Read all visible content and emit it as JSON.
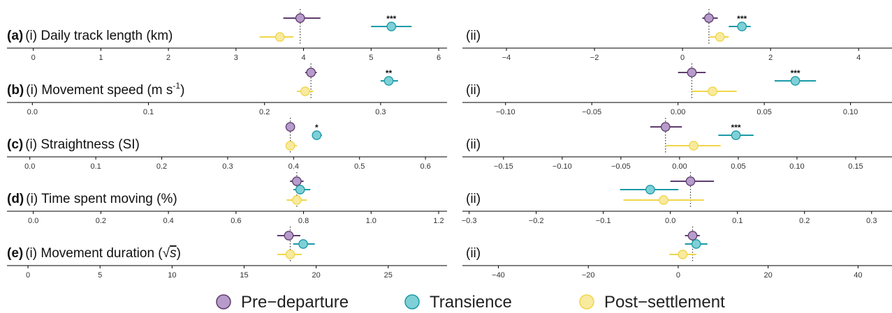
{
  "colors": {
    "pre": "#5e3c6e",
    "pre_fill": "#b79ccb",
    "trans": "#1a9aa8",
    "trans_fill": "#7fd0d6",
    "post": "#f0d64a",
    "post_fill": "#f8ea9e",
    "axis": "#000000",
    "tick_label": "#333333",
    "dotted": "#333333"
  },
  "legend": {
    "items": [
      {
        "key": "pre",
        "label": "Pre−departure"
      },
      {
        "key": "trans",
        "label": "Transience"
      },
      {
        "key": "post",
        "label": "Post−settlement"
      }
    ]
  },
  "chart_data": [
    {
      "type": "dot-interval",
      "panel_letter": "(a)",
      "title_text": "(i) Daily track length (km)",
      "sup": "",
      "has_sqrt": false,
      "left": {
        "xlim": [
          -0.1,
          6
        ],
        "ticks": [
          0,
          1,
          2,
          3,
          4,
          5,
          6
        ],
        "tick_labels": [
          "0",
          "1",
          "2",
          "3",
          "4",
          "5",
          "6"
        ],
        "ref": 3.95,
        "points": [
          {
            "key": "pre",
            "x": 3.95,
            "lo": 3.7,
            "hi": 4.25,
            "sig": ""
          },
          {
            "key": "trans",
            "x": 5.3,
            "lo": 5.0,
            "hi": 5.6,
            "sig": "***"
          },
          {
            "key": "post",
            "x": 3.65,
            "lo": 3.35,
            "hi": 3.85,
            "sig": ""
          }
        ]
      },
      "right": {
        "label": "(ii)",
        "xlim": [
          -5.0,
          4.6
        ],
        "ticks": [
          -4,
          -2,
          0,
          2,
          4
        ],
        "tick_labels": [
          "−4",
          "−2",
          "0",
          "2",
          "4"
        ],
        "ref": 0.6,
        "points": [
          {
            "key": "pre",
            "x": 0.6,
            "lo": 0.45,
            "hi": 0.8,
            "sig": ""
          },
          {
            "key": "trans",
            "x": 1.35,
            "lo": 1.05,
            "hi": 1.55,
            "sig": "***"
          },
          {
            "key": "post",
            "x": 0.85,
            "lo": 0.6,
            "hi": 1.05,
            "sig": ""
          }
        ]
      }
    },
    {
      "type": "dot-interval",
      "panel_letter": "(b)",
      "title_text": "(i) Movement speed (m s",
      "sup": "-1",
      "title_suffix": ")",
      "has_sqrt": false,
      "left": {
        "xlim": [
          -0.005,
          0.35
        ],
        "ticks": [
          0,
          0.1,
          0.2,
          0.3
        ],
        "tick_labels": [
          "0.0",
          "0.1",
          "0.2",
          "0.3"
        ],
        "ref": 0.24,
        "points": [
          {
            "key": "pre",
            "x": 0.24,
            "lo": 0.235,
            "hi": 0.245,
            "sig": ""
          },
          {
            "key": "trans",
            "x": 0.307,
            "lo": 0.3,
            "hi": 0.315,
            "sig": "**"
          },
          {
            "key": "post",
            "x": 0.235,
            "lo": 0.228,
            "hi": 0.242,
            "sig": ""
          }
        ]
      },
      "right": {
        "label": "(ii)",
        "xlim": [
          -0.125,
          0.12
        ],
        "ticks": [
          -0.1,
          -0.05,
          0,
          0.05,
          0.1
        ],
        "tick_labels": [
          "−0.10",
          "−0.05",
          "0.00",
          "0.05",
          "0.10"
        ],
        "ref": 0.008,
        "points": [
          {
            "key": "pre",
            "x": 0.008,
            "lo": 0.0,
            "hi": 0.016,
            "sig": ""
          },
          {
            "key": "trans",
            "x": 0.068,
            "lo": 0.056,
            "hi": 0.08,
            "sig": "***"
          },
          {
            "key": "post",
            "x": 0.02,
            "lo": 0.008,
            "hi": 0.034,
            "sig": ""
          }
        ]
      }
    },
    {
      "type": "dot-interval",
      "panel_letter": "(c)",
      "title_text": "(i) Straightness (SI)",
      "sup": "",
      "has_sqrt": false,
      "left": {
        "xlim": [
          -0.005,
          0.62
        ],
        "ticks": [
          0,
          0.1,
          0.2,
          0.3,
          0.4,
          0.5,
          0.6
        ],
        "tick_labels": [
          "0.0",
          "0.1",
          "0.2",
          "0.3",
          "0.4",
          "0.5",
          "0.6"
        ],
        "ref": 0.395,
        "points": [
          {
            "key": "pre",
            "x": 0.395,
            "lo": 0.39,
            "hi": 0.4,
            "sig": ""
          },
          {
            "key": "trans",
            "x": 0.435,
            "lo": 0.428,
            "hi": 0.443,
            "sig": "*"
          },
          {
            "key": "post",
            "x": 0.395,
            "lo": 0.388,
            "hi": 0.405,
            "sig": ""
          }
        ]
      },
      "right": {
        "label": "(ii)",
        "xlim": [
          -0.185,
          0.175
        ],
        "ticks": [
          -0.15,
          -0.1,
          -0.05,
          0,
          0.05,
          0.1,
          0.15
        ],
        "tick_labels": [
          "−0.15",
          "−0.10",
          "−0.05",
          "0.00",
          "0.05",
          "0.10",
          "0.15"
        ],
        "ref": -0.012,
        "points": [
          {
            "key": "pre",
            "x": -0.012,
            "lo": -0.025,
            "hi": 0.002,
            "sig": ""
          },
          {
            "key": "trans",
            "x": 0.048,
            "lo": 0.033,
            "hi": 0.063,
            "sig": "***"
          },
          {
            "key": "post",
            "x": 0.012,
            "lo": -0.012,
            "hi": 0.035,
            "sig": ""
          }
        ]
      }
    },
    {
      "type": "dot-interval",
      "panel_letter": "(d)",
      "title_text": "(i) Time spent moving (%)",
      "sup": "",
      "has_sqrt": false,
      "left": {
        "xlim": [
          -0.02,
          1.2
        ],
        "ticks": [
          0,
          0.2,
          0.4,
          0.6,
          0.8,
          1.0,
          1.2
        ],
        "tick_labels": [
          "0.0",
          "0.2",
          "0.4",
          "0.6",
          "0.8",
          "1.0",
          "1.2"
        ],
        "ref": 0.78,
        "points": [
          {
            "key": "pre",
            "x": 0.78,
            "lo": 0.76,
            "hi": 0.8,
            "sig": ""
          },
          {
            "key": "trans",
            "x": 0.79,
            "lo": 0.77,
            "hi": 0.82,
            "sig": ""
          },
          {
            "key": "post",
            "x": 0.78,
            "lo": 0.75,
            "hi": 0.81,
            "sig": ""
          }
        ]
      },
      "right": {
        "label": "(ii)",
        "xlim": [
          -0.31,
          0.32
        ],
        "ticks": [
          -0.3,
          -0.2,
          -0.1,
          0,
          0.1,
          0.2,
          0.3
        ],
        "tick_labels": [
          "−0.3",
          "−0.2",
          "−0.1",
          "0.0",
          "0.1",
          "0.2",
          "0.3"
        ],
        "ref": 0.03,
        "points": [
          {
            "key": "pre",
            "x": 0.03,
            "lo": 0.0,
            "hi": 0.065,
            "sig": ""
          },
          {
            "key": "trans",
            "x": -0.03,
            "lo": -0.075,
            "hi": 0.012,
            "sig": ""
          },
          {
            "key": "post",
            "x": -0.01,
            "lo": -0.07,
            "hi": 0.05,
            "sig": ""
          }
        ]
      }
    },
    {
      "type": "dot-interval",
      "panel_letter": "(e)",
      "title_text": "(i) Movement duration (",
      "sup": "",
      "title_suffix": ")",
      "has_sqrt": true,
      "left": {
        "xlim": [
          -0.1,
          28.5
        ],
        "ticks": [
          0,
          5,
          10,
          15,
          20,
          25
        ],
        "tick_labels": [
          "0",
          "5",
          "10",
          "15",
          "20",
          "25"
        ],
        "ref": 18.2,
        "points": [
          {
            "key": "pre",
            "x": 18.1,
            "lo": 17.3,
            "hi": 18.9,
            "sig": ""
          },
          {
            "key": "trans",
            "x": 19.1,
            "lo": 18.4,
            "hi": 19.9,
            "sig": ""
          },
          {
            "key": "post",
            "x": 18.2,
            "lo": 17.3,
            "hi": 19.0,
            "sig": ""
          }
        ]
      },
      "right": {
        "label": "(ii)",
        "xlim": [
          -48,
          46
        ],
        "ticks": [
          -40,
          -20,
          0,
          20,
          40
        ],
        "tick_labels": [
          "−40",
          "−20",
          "0",
          "20",
          "40"
        ],
        "ref": 3.2,
        "points": [
          {
            "key": "pre",
            "x": 3.2,
            "lo": 1.5,
            "hi": 4.8,
            "sig": ""
          },
          {
            "key": "trans",
            "x": 4.0,
            "lo": 1.5,
            "hi": 6.5,
            "sig": ""
          },
          {
            "key": "post",
            "x": 1.0,
            "lo": -2.0,
            "hi": 4.0,
            "sig": ""
          }
        ]
      }
    }
  ]
}
